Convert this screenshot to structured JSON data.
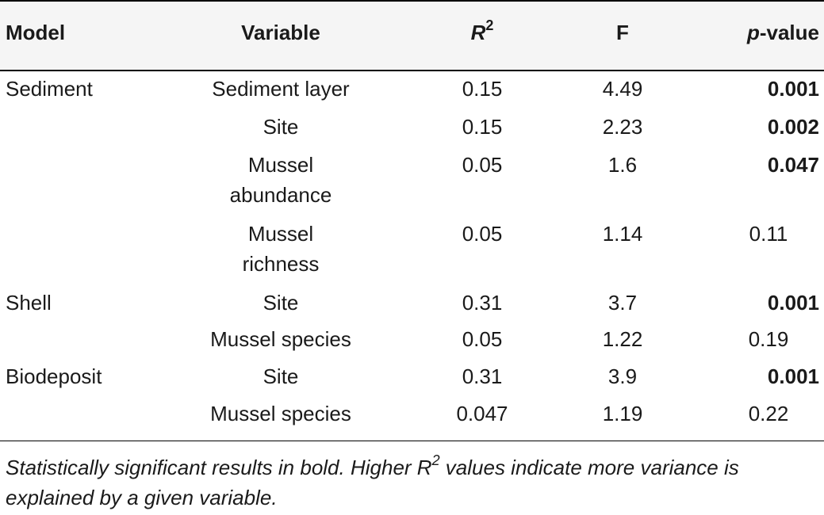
{
  "table": {
    "headers": {
      "model": "Model",
      "variable": "Variable",
      "r2_base": "R",
      "r2_sup": "2",
      "f": "F",
      "p_italic": "p",
      "p_rest": "-value"
    },
    "rows": [
      {
        "model": "Sediment",
        "variable_line1": "Sediment layer",
        "variable_line2": "",
        "r2": "0.15",
        "f": "4.49",
        "p": "0.001",
        "significant": true
      },
      {
        "model": "",
        "variable_line1": "Site",
        "variable_line2": "",
        "r2": "0.15",
        "f": "2.23",
        "p": "0.002",
        "significant": true
      },
      {
        "model": "",
        "variable_line1": "Mussel",
        "variable_line2": "abundance",
        "r2": "0.05",
        "f": "1.6",
        "p": "0.047",
        "significant": true
      },
      {
        "model": "",
        "variable_line1": "Mussel",
        "variable_line2": "richness",
        "r2": "0.05",
        "f": "1.14",
        "p": "0.11",
        "significant": false
      },
      {
        "model": "Shell",
        "variable_line1": "Site",
        "variable_line2": "",
        "r2": "0.31",
        "f": "3.7",
        "p": "0.001",
        "significant": true
      },
      {
        "model": "",
        "variable_line1": "Mussel species",
        "variable_line2": "",
        "r2": "0.05",
        "f": "1.22",
        "p": "0.19",
        "significant": false
      },
      {
        "model": "Biodeposit",
        "variable_line1": "Site",
        "variable_line2": "",
        "r2": "0.31",
        "f": "3.9",
        "p": "0.001",
        "significant": true
      },
      {
        "model": "",
        "variable_line1": "Mussel species",
        "variable_line2": "",
        "r2": "0.047",
        "f": "1.19",
        "p": "0.22",
        "significant": false
      }
    ]
  },
  "footnote": {
    "part1": "Statistically significant results in bold. Higher ",
    "r_letter": "R",
    "r_sup": "2",
    "part2": " values indicate more variance is explained by a given variable."
  }
}
